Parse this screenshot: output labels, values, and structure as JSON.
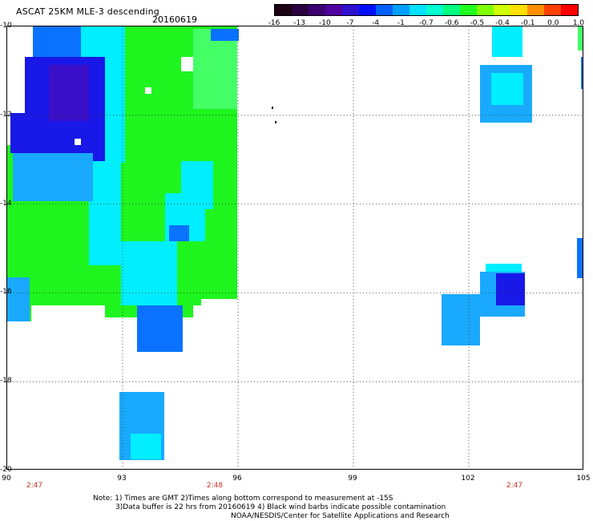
{
  "header": {
    "title": "ASCAT 25KM MLE-3 descending",
    "date": "20160619"
  },
  "colorbar": {
    "colors": [
      "#1a0010",
      "#2a0040",
      "#3c0070",
      "#5000a0",
      "#3010d0",
      "#0010ff",
      "#0060ff",
      "#00a0ff",
      "#00e0ff",
      "#00ffd0",
      "#00ff80",
      "#20ff20",
      "#80ff00",
      "#d0ff00",
      "#ffe000",
      "#ff9000",
      "#ff4000",
      "#ff0000"
    ],
    "ticks": [
      "-16",
      "-13",
      "-10",
      "-7",
      "-4",
      "-1",
      "-0.7",
      "-0.6",
      "-0.5",
      "-0.4",
      "-0.1",
      "0.0",
      "1.0"
    ]
  },
  "axes": {
    "lat_labels": [
      "-10",
      "-12",
      "-14",
      "-16",
      "-18",
      "-20"
    ],
    "lon_labels": [
      "90",
      "93",
      "96",
      "99",
      "102",
      "105"
    ],
    "times": [
      "2:47",
      "2:48",
      "2:47"
    ]
  },
  "notes": {
    "line1": "Note: 1) Times are GMT 2)Times along bottom correspond to measurement at -15S",
    "line2": "3)Data buffer is 22 hrs from 20160619 4) Black wind barbs indicate possible contamination",
    "line3": "NOAA/NESDIS/Center for Satellite Applications and Research"
  },
  "palette": {
    "green": "#1ef51e",
    "light_green": "#44ff66",
    "cyan": "#00eeff",
    "sky": "#19a9ff",
    "blue": "#0b72ff",
    "deep_blue": "#1818e8",
    "violet": "#3a10c8"
  }
}
